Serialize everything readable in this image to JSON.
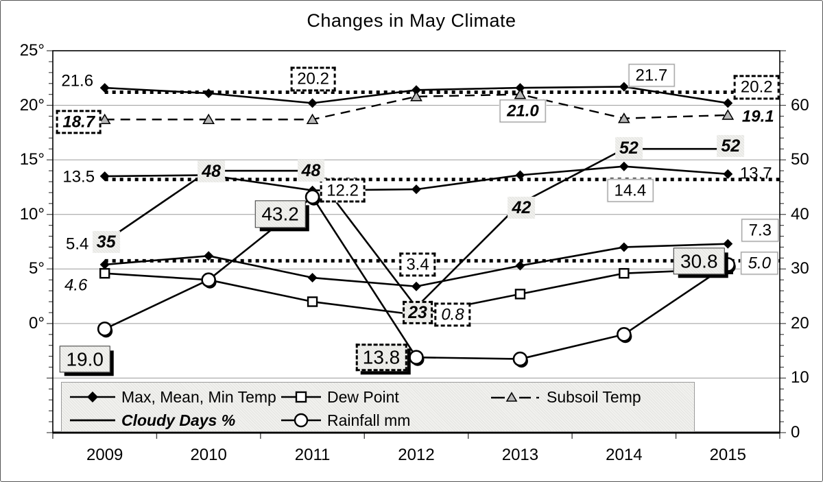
{
  "title": "Changes in May Climate",
  "chart_data": {
    "type": "line",
    "title": "Changes in May Climate",
    "categories": [
      "2009",
      "2010",
      "2011",
      "2012",
      "2013",
      "2014",
      "2015"
    ],
    "left_axis": {
      "unit": "degrees C",
      "range": [
        -10,
        25
      ],
      "ticks": [
        {
          "text": "25°",
          "value": 25
        },
        {
          "text": "20°",
          "value": 20
        },
        {
          "text": "15°",
          "value": 15
        },
        {
          "text": "10°",
          "value": 10
        },
        {
          "text": "5°",
          "value": 5
        },
        {
          "text": "0°",
          "value": 0
        }
      ]
    },
    "right_axis": {
      "unit": "percent / mm",
      "range": [
        0,
        70
      ],
      "ticks": [
        {
          "text": "60",
          "value": 60
        },
        {
          "text": "50",
          "value": 50
        },
        {
          "text": "40",
          "value": 40
        },
        {
          "text": "30",
          "value": 30
        },
        {
          "text": "20",
          "value": 20
        },
        {
          "text": "10",
          "value": 10
        },
        {
          "text": "0",
          "value": 0
        }
      ]
    },
    "grid": "horizontal-on",
    "legend_position": "bottom-inside",
    "series": [
      {
        "id": "max-temp",
        "name": "Max Temp",
        "legend_group": "Max, Mean, Min Temp",
        "axis": "left",
        "marker": "diamond",
        "line": "solid",
        "values": [
          21.6,
          21.1,
          20.2,
          21.4,
          21.6,
          21.7,
          20.2
        ],
        "labels": [
          {
            "i": 0,
            "text": "21.6",
            "style": "plain",
            "dx": -40,
            "dy": -10
          },
          {
            "i": 2,
            "text": "20.2",
            "style": "dotted",
            "dx": 1,
            "dy": -35
          },
          {
            "i": 5,
            "text": "21.7",
            "style": "boxed",
            "dx": 40,
            "dy": -17
          },
          {
            "i": 6,
            "text": "20.2",
            "style": "dotted",
            "dx": 42,
            "dy": -23
          }
        ]
      },
      {
        "id": "mean-temp",
        "name": "Mean Temp",
        "legend_group": "Max, Mean, Min Temp",
        "axis": "left",
        "marker": "diamond",
        "line": "solid",
        "values": [
          13.5,
          13.6,
          12.2,
          12.3,
          13.6,
          14.4,
          13.7
        ],
        "labels": [
          {
            "i": 0,
            "text": "13.5",
            "style": "plain",
            "dx": -38,
            "dy": 1
          },
          {
            "i": 2,
            "text": "12.2",
            "style": "dotted",
            "dx": 44,
            "dy": 0
          },
          {
            "i": 5,
            "text": "14.4",
            "style": "boxed",
            "dx": 9,
            "dy": 35
          },
          {
            "i": 6,
            "text": "13.7",
            "style": "plain",
            "dx": 41,
            "dy": -1
          }
        ]
      },
      {
        "id": "min-temp",
        "name": "Min Temp",
        "legend_group": "Max, Mean, Min Temp",
        "axis": "left",
        "marker": "diamond",
        "line": "solid",
        "values": [
          5.4,
          6.2,
          4.2,
          3.4,
          5.3,
          7.0,
          7.3
        ],
        "labels": [
          {
            "i": 0,
            "text": "5.4",
            "style": "plain",
            "dx": -40,
            "dy": -30
          },
          {
            "i": 3,
            "text": "3.4",
            "style": "dotted",
            "dx": 2,
            "dy": -32
          },
          {
            "i": 6,
            "text": "7.3",
            "style": "boxed",
            "dx": 47,
            "dy": -20
          }
        ]
      },
      {
        "id": "dew-point",
        "name": "Dew Point",
        "legend_group": "Dew Point",
        "axis": "left",
        "marker": "square",
        "line": "solid",
        "values": [
          4.6,
          4.0,
          2.0,
          0.8,
          2.7,
          4.6,
          5.0
        ],
        "labels": [
          {
            "i": 0,
            "text": "4.6",
            "style": "plain",
            "cls": "italic",
            "dx": -42,
            "dy": 17
          },
          {
            "i": 3,
            "text": "0.8",
            "style": "dotted",
            "cls": "italic",
            "dx": 53,
            "dy": 0
          },
          {
            "i": 6,
            "text": "5.0",
            "style": "boxed",
            "cls": "italic",
            "dx": 46,
            "dy": -8
          }
        ]
      },
      {
        "id": "subsoil-temp",
        "name": "Subsoil Temp",
        "legend_group": "Subsoil Temp",
        "axis": "left",
        "marker": "triangle",
        "line": "dashed",
        "values": [
          18.7,
          18.7,
          18.7,
          20.8,
          21.0,
          18.8,
          19.1
        ],
        "labels": [
          {
            "i": 0,
            "text": "18.7",
            "style": "dotted",
            "cls": "bolditalic",
            "dx": -38,
            "dy": 4
          },
          {
            "i": 4,
            "text": "21.0",
            "style": "boxed",
            "cls": "bolditalic",
            "dx": 4,
            "dy": 24
          },
          {
            "i": 6,
            "text": "19.1",
            "style": "plain",
            "cls": "bolditalic",
            "dx": 44,
            "dy": 2
          }
        ]
      },
      {
        "id": "cloudy-days",
        "name": "Cloudy Days %",
        "legend_group": "Cloudy Days %",
        "axis": "right",
        "marker": "none",
        "line": "solid",
        "values": [
          35,
          48,
          48,
          23,
          42,
          52,
          52
        ],
        "labels": [
          {
            "i": 0,
            "text": "35",
            "style": "shaded",
            "dx": 2,
            "dy": 0
          },
          {
            "i": 1,
            "text": "48",
            "style": "shaded",
            "dx": 4,
            "dy": 1
          },
          {
            "i": 2,
            "text": "48",
            "style": "shaded",
            "dx": -2,
            "dy": 0
          },
          {
            "i": 3,
            "text": "23",
            "style": "shaded-dotted",
            "dx": 2,
            "dy": 8
          },
          {
            "i": 4,
            "text": "42",
            "style": "shaded",
            "dx": 2,
            "dy": 6
          },
          {
            "i": 5,
            "text": "52",
            "style": "shaded",
            "dx": 7,
            "dy": -1
          },
          {
            "i": 6,
            "text": "52",
            "style": "shaded",
            "dx": 4,
            "dy": -4
          }
        ]
      },
      {
        "id": "rainfall",
        "name": "Rainfall mm",
        "legend_group": "Rainfall mm",
        "axis": "right",
        "marker": "circle",
        "line": "solid",
        "values": [
          19.0,
          28,
          43.2,
          13.8,
          13.5,
          18,
          30.8
        ],
        "labels": [
          {
            "i": 0,
            "text": "19.0",
            "style": "big",
            "dx": -29,
            "dy": 44
          },
          {
            "i": 2,
            "text": "43.2",
            "style": "big",
            "dx": -47,
            "dy": 25
          },
          {
            "i": 3,
            "text": "13.8",
            "style": "big-dotted",
            "dx": -51,
            "dy": 0
          },
          {
            "i": 6,
            "text": "30.8",
            "style": "big",
            "dx": -42,
            "dy": -5
          }
        ]
      }
    ],
    "trend_lines": [
      {
        "axis": "left",
        "value": 21.2,
        "for": "Max Temp"
      },
      {
        "axis": "left",
        "value": 13.2,
        "for": "Mean Temp"
      },
      {
        "axis": "left",
        "value": 5.75,
        "for": "Min Temp"
      }
    ],
    "legend": {
      "items": [
        {
          "label": "Max, Mean, Min Temp",
          "sample": "diamond-line"
        },
        {
          "label": "Dew Point",
          "sample": "square-line"
        },
        {
          "label": "Subsoil Temp",
          "sample": "triangle-dash-line"
        },
        {
          "label": "Cloudy Days %",
          "sample": "plain-line",
          "italic": true
        },
        {
          "label": "Rainfall mm",
          "sample": "circle-line"
        }
      ]
    }
  }
}
